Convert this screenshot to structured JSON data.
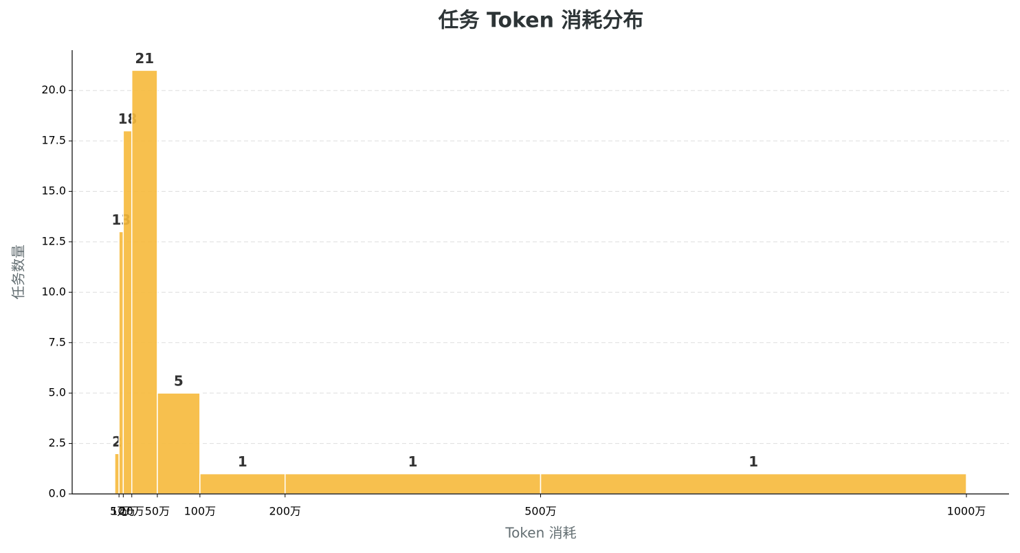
{
  "chart_data": {
    "type": "histogram",
    "title": "任务 Token 消耗分布",
    "x_label": "Token 消耗",
    "y_label": "任务数量",
    "bins": [
      0,
      50000,
      100000,
      200000,
      500000,
      1000000,
      2000000,
      5000000,
      10000000
    ],
    "values": [
      2,
      13,
      18,
      21,
      5,
      1,
      1,
      1
    ],
    "color": "#f6b93b",
    "xlim": [
      -500000,
      10500000
    ],
    "ylim": [
      0,
      22
    ],
    "xticks": [
      {
        "value": 50000,
        "label": "5万"
      },
      {
        "value": 100000,
        "label": "10万"
      },
      {
        "value": 200000,
        "label": "20万"
      },
      {
        "value": 500000,
        "label": "50万"
      },
      {
        "value": 1000000,
        "label": "100万"
      },
      {
        "value": 2000000,
        "label": "200万"
      },
      {
        "value": 5000000,
        "label": "500万"
      },
      {
        "value": 10000000,
        "label": "1000万"
      }
    ],
    "yticks": [
      {
        "value": 0,
        "label": "0.0"
      },
      {
        "value": 2.5,
        "label": "2.5"
      },
      {
        "value": 5,
        "label": "5.0"
      },
      {
        "value": 7.5,
        "label": "7.5"
      },
      {
        "value": 10,
        "label": "10.0"
      },
      {
        "value": 12.5,
        "label": "12.5"
      },
      {
        "value": 15,
        "label": "15.0"
      },
      {
        "value": 17.5,
        "label": "17.5"
      },
      {
        "value": 20,
        "label": "20.0"
      }
    ],
    "grid": true
  }
}
